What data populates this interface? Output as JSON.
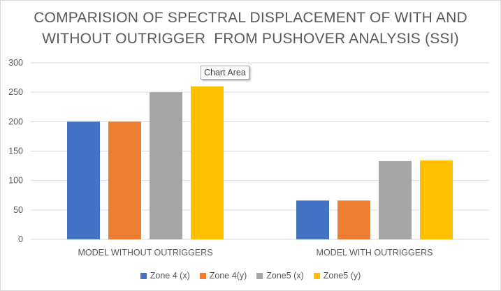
{
  "chart_data": {
    "type": "bar",
    "title_lines": [
      "COMPARISION OF SPECTRAL DISPLACEMENT OF WITH AND",
      "WITHOUT OUTRIGGER  FROM PUSHOVER ANALYSIS (SSI)"
    ],
    "categories": [
      "MODEL WITHOUT OUTRIGGERS",
      "MODEL WITH OUTRIGGERS"
    ],
    "series": [
      {
        "name": "Zone 4 (x)",
        "color": "#4472c4",
        "values": [
          200,
          66
        ]
      },
      {
        "name": "Zone 4(y)",
        "color": "#ed7d31",
        "values": [
          200,
          66
        ]
      },
      {
        "name": "Zone5 (x)",
        "color": "#a5a5a5",
        "values": [
          250,
          133
        ]
      },
      {
        "name": "Zone5 (y)",
        "color": "#ffc000",
        "values": [
          260,
          134
        ]
      }
    ],
    "ylim": [
      0,
      300
    ],
    "yticks": [
      0,
      50,
      100,
      150,
      200,
      250,
      300
    ],
    "grid": true,
    "legend_position": "bottom"
  },
  "tooltip": "Chart Area"
}
